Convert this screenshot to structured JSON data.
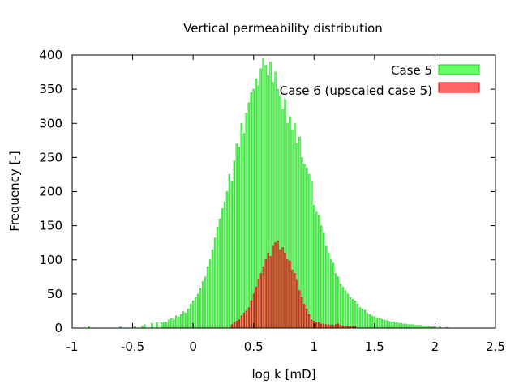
{
  "chart_data": {
    "type": "bar",
    "title": "Vertical permeability distribution",
    "xlabel": "log k [mD]",
    "ylabel": "Frequency [-]",
    "xlim": [
      -1,
      2.5
    ],
    "ylim": [
      0,
      400
    ],
    "xticks": [
      "-1",
      "-0.5",
      "0",
      "0.5",
      "1",
      "1.5",
      "2",
      "2.5"
    ],
    "yticks": [
      "0",
      "50",
      "100",
      "150",
      "200",
      "250",
      "300",
      "350",
      "400"
    ],
    "legend_position": "top-right",
    "bin_width": 0.02,
    "series": [
      {
        "name": "Case 5",
        "color": "#00ff00",
        "fill_opacity": 0.6,
        "x": [
          -0.86,
          -0.6,
          -0.48,
          -0.42,
          -0.4,
          -0.34,
          -0.3,
          -0.26,
          -0.24,
          -0.22,
          -0.2,
          -0.18,
          -0.16,
          -0.14,
          -0.12,
          -0.1,
          -0.08,
          -0.06,
          -0.04,
          -0.02,
          0.0,
          0.02,
          0.04,
          0.06,
          0.08,
          0.1,
          0.12,
          0.14,
          0.16,
          0.18,
          0.2,
          0.22,
          0.24,
          0.26,
          0.28,
          0.3,
          0.32,
          0.34,
          0.36,
          0.38,
          0.4,
          0.42,
          0.44,
          0.46,
          0.48,
          0.5,
          0.52,
          0.54,
          0.56,
          0.58,
          0.6,
          0.62,
          0.64,
          0.66,
          0.68,
          0.7,
          0.72,
          0.74,
          0.76,
          0.78,
          0.8,
          0.82,
          0.84,
          0.86,
          0.88,
          0.9,
          0.92,
          0.94,
          0.96,
          0.98,
          1.0,
          1.02,
          1.04,
          1.06,
          1.08,
          1.1,
          1.12,
          1.14,
          1.16,
          1.18,
          1.2,
          1.22,
          1.24,
          1.26,
          1.28,
          1.3,
          1.32,
          1.34,
          1.36,
          1.38,
          1.4,
          1.42,
          1.44,
          1.46,
          1.48,
          1.5,
          1.52,
          1.54,
          1.56,
          1.58,
          1.6,
          1.62,
          1.64,
          1.66,
          1.68,
          1.7,
          1.72,
          1.74,
          1.76,
          1.78,
          1.8,
          1.82,
          1.84,
          1.86,
          1.88,
          1.9,
          1.92,
          1.94,
          1.96,
          1.98,
          2.0,
          2.04,
          2.1
        ],
        "values": [
          2,
          2,
          2,
          3,
          5,
          7,
          8,
          8,
          9,
          9,
          12,
          14,
          12,
          18,
          16,
          20,
          24,
          22,
          28,
          35,
          40,
          45,
          50,
          58,
          68,
          75,
          90,
          100,
          115,
          132,
          148,
          160,
          175,
          185,
          200,
          225,
          215,
          245,
          270,
          265,
          300,
          285,
          315,
          330,
          345,
          350,
          365,
          355,
          380,
          395,
          385,
          370,
          390,
          360,
          375,
          350,
          340,
          320,
          335,
          300,
          310,
          290,
          300,
          270,
          280,
          250,
          240,
          235,
          225,
          215,
          180,
          170,
          165,
          150,
          140,
          120,
          110,
          100,
          95,
          80,
          75,
          65,
          60,
          55,
          50,
          45,
          42,
          40,
          35,
          30,
          28,
          26,
          22,
          20,
          18,
          17,
          15,
          14,
          13,
          12,
          11,
          10,
          9,
          9,
          8,
          7,
          7,
          6,
          6,
          5,
          5,
          5,
          4,
          4,
          4,
          3,
          3,
          3,
          2,
          2,
          2,
          2,
          1
        ]
      },
      {
        "name": "Case 6 (upscaled case 5)",
        "color": "#ff0000",
        "fill_opacity": 0.6,
        "x": [
          0.32,
          0.34,
          0.36,
          0.38,
          0.4,
          0.42,
          0.44,
          0.46,
          0.48,
          0.5,
          0.52,
          0.54,
          0.56,
          0.58,
          0.6,
          0.62,
          0.64,
          0.66,
          0.68,
          0.7,
          0.72,
          0.74,
          0.76,
          0.78,
          0.8,
          0.82,
          0.84,
          0.86,
          0.88,
          0.9,
          0.92,
          0.94,
          0.96,
          0.98,
          1.0,
          1.02,
          1.04,
          1.06,
          1.08,
          1.1,
          1.12,
          1.14,
          1.16,
          1.18,
          1.2,
          1.22,
          1.24,
          1.26,
          1.28,
          1.3,
          1.32,
          1.34
        ],
        "values": [
          5,
          8,
          10,
          12,
          18,
          22,
          25,
          30,
          40,
          50,
          60,
          72,
          80,
          90,
          100,
          110,
          105,
          120,
          125,
          128,
          115,
          118,
          110,
          100,
          98,
          85,
          80,
          70,
          55,
          45,
          35,
          28,
          20,
          12,
          10,
          8,
          8,
          6,
          6,
          5,
          5,
          4,
          4,
          5,
          6,
          4,
          3,
          3,
          3,
          2,
          2,
          2
        ]
      }
    ]
  }
}
